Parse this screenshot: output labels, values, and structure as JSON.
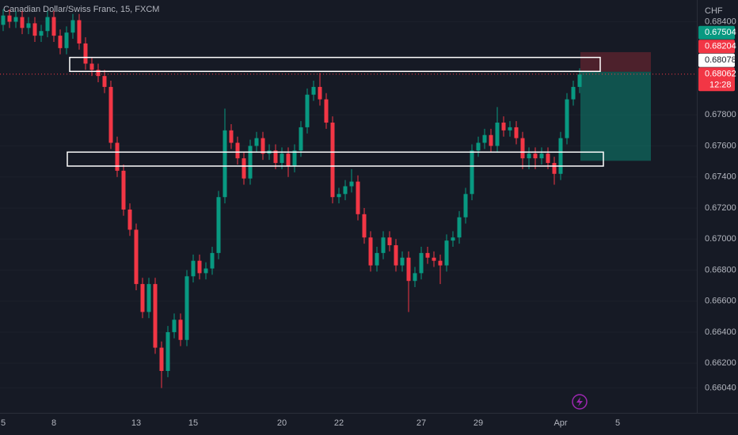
{
  "chart_data": {
    "type": "candlestick",
    "title": "Canadian Dollar/Swiss Franc, 15, FXCM",
    "currency": "CHF",
    "bull_color": "#089981",
    "bear_color": "#f23645",
    "grid": true,
    "categories": [
      "5",
      null,
      null,
      null,
      null,
      null,
      null,
      null,
      "8",
      null,
      null,
      null,
      null,
      null,
      null,
      null,
      null,
      null,
      null,
      null,
      null,
      "13",
      null,
      null,
      null,
      null,
      null,
      null,
      null,
      null,
      "15",
      null,
      null,
      null,
      null,
      null,
      null,
      null,
      null,
      null,
      null,
      null,
      null,
      null,
      "20",
      null,
      null,
      null,
      null,
      null,
      null,
      null,
      null,
      "22",
      null,
      null,
      null,
      null,
      null,
      null,
      null,
      null,
      null,
      null,
      null,
      null,
      "27",
      null,
      null,
      null,
      null,
      null,
      null,
      null,
      null,
      "29",
      null,
      null,
      null,
      null,
      null,
      null,
      null,
      null,
      null,
      null,
      null,
      null,
      "Apr",
      null,
      null,
      null,
      null,
      null,
      null,
      null,
      null,
      "5",
      null,
      null
    ],
    "open": [
      0.6838,
      0.6844,
      0.684,
      0.6843,
      0.6836,
      0.6839,
      0.6831,
      0.6834,
      0.6843,
      0.6831,
      0.6823,
      0.6833,
      0.6841,
      0.6826,
      0.6813,
      0.6809,
      0.6805,
      0.6798,
      0.6762,
      0.6744,
      0.6719,
      0.6706,
      0.6671,
      0.6653,
      0.6671,
      0.663,
      0.6615,
      0.664,
      0.6648,
      0.6635,
      0.6676,
      0.6686,
      0.6678,
      0.6681,
      0.6691,
      0.6727,
      0.677,
      0.6762,
      0.6752,
      0.6739,
      0.676,
      0.6765,
      0.6755,
      0.6757,
      0.6749,
      0.6755,
      0.6747,
      0.6757,
      0.6772,
      0.6793,
      0.6798,
      0.679,
      0.6775,
      0.6727,
      0.6729,
      0.6734,
      0.6737,
      0.6716,
      0.6701,
      0.6683,
      0.6691,
      0.6701,
      0.6696,
      0.6683,
      0.6688,
      0.6673,
      0.6678,
      0.6691,
      0.6688,
      0.6686,
      0.6683,
      0.6699,
      0.6701,
      0.6714,
      0.6729,
      0.6757,
      0.6762,
      0.6767,
      0.676,
      0.6775,
      0.677,
      0.6772,
      0.6765,
      0.6752,
      0.6755,
      0.6752,
      0.6755,
      0.6749,
      0.6742,
      0.6765,
      0.679,
      0.6798,
      null,
      null,
      null,
      null,
      null,
      null,
      null,
      null
    ],
    "high": [
      0.6848,
      0.6848,
      0.6847,
      0.6847,
      0.6843,
      0.6843,
      0.6838,
      0.6847,
      0.6847,
      0.6835,
      0.6837,
      0.6845,
      0.6845,
      0.683,
      0.6817,
      0.6813,
      0.6809,
      0.6802,
      0.6766,
      0.6748,
      0.6723,
      0.671,
      0.6675,
      0.6675,
      0.6675,
      0.6634,
      0.6644,
      0.6652,
      0.6652,
      0.668,
      0.669,
      0.669,
      0.6685,
      0.6695,
      0.6731,
      0.6784,
      0.6774,
      0.6766,
      0.6756,
      0.6764,
      0.6769,
      0.6769,
      0.6761,
      0.6761,
      0.6759,
      0.6759,
      0.6761,
      0.6776,
      0.6797,
      0.6802,
      0.6807,
      0.6794,
      0.6779,
      0.6733,
      0.6738,
      0.6745,
      0.6741,
      0.672,
      0.6705,
      0.6695,
      0.6705,
      0.6705,
      0.67,
      0.6692,
      0.6692,
      0.6682,
      0.6695,
      0.6695,
      0.6692,
      0.669,
      0.6703,
      0.6705,
      0.6718,
      0.6733,
      0.6761,
      0.6766,
      0.6771,
      0.6771,
      0.6785,
      0.6779,
      0.6776,
      0.6776,
      0.6769,
      0.6759,
      0.6759,
      0.6759,
      0.6759,
      0.6753,
      0.6769,
      0.6794,
      0.6802,
      0.681,
      null,
      null,
      null,
      null,
      null,
      null,
      null,
      null
    ],
    "low": [
      0.6834,
      0.6836,
      0.6836,
      0.6832,
      0.6832,
      0.6827,
      0.6827,
      0.683,
      0.6827,
      0.6819,
      0.6819,
      0.6829,
      0.6822,
      0.6809,
      0.6805,
      0.6801,
      0.6794,
      0.6758,
      0.674,
      0.6715,
      0.6702,
      0.6667,
      0.6649,
      0.6649,
      0.6626,
      0.6604,
      0.6611,
      0.6636,
      0.6631,
      0.6631,
      0.6672,
      0.6674,
      0.6674,
      0.6677,
      0.6687,
      0.6723,
      0.6758,
      0.6748,
      0.6735,
      0.6735,
      0.6756,
      0.6751,
      0.6751,
      0.6745,
      0.6745,
      0.674,
      0.6743,
      0.6753,
      0.6768,
      0.6789,
      0.6786,
      0.6771,
      0.6723,
      0.6723,
      0.6725,
      0.673,
      0.6712,
      0.6697,
      0.6679,
      0.6679,
      0.6687,
      0.6692,
      0.6679,
      0.6679,
      0.6653,
      0.6669,
      0.6674,
      0.6684,
      0.6682,
      0.6671,
      0.6679,
      0.6695,
      0.6697,
      0.671,
      0.6725,
      0.6753,
      0.6758,
      0.6756,
      0.6756,
      0.6766,
      0.6766,
      0.6761,
      0.6745,
      0.6745,
      0.6745,
      0.6748,
      0.6745,
      0.6735,
      0.6738,
      0.6761,
      0.6786,
      0.6794,
      null,
      null,
      null,
      null,
      null,
      null,
      null,
      null
    ],
    "close": [
      0.6844,
      0.684,
      0.6843,
      0.6836,
      0.6839,
      0.6831,
      0.6834,
      0.6843,
      0.6831,
      0.6823,
      0.6833,
      0.6841,
      0.6826,
      0.6813,
      0.6809,
      0.6805,
      0.6798,
      0.6762,
      0.6744,
      0.6719,
      0.6706,
      0.6671,
      0.6653,
      0.6671,
      0.663,
      0.6615,
      0.664,
      0.6648,
      0.6635,
      0.6676,
      0.6686,
      0.6678,
      0.6681,
      0.6691,
      0.6727,
      0.677,
      0.6762,
      0.6752,
      0.6739,
      0.676,
      0.6765,
      0.6755,
      0.6757,
      0.6749,
      0.6755,
      0.6747,
      0.6757,
      0.6772,
      0.6793,
      0.6798,
      0.679,
      0.6775,
      0.6727,
      0.6729,
      0.6734,
      0.6737,
      0.6716,
      0.6701,
      0.6683,
      0.6691,
      0.6701,
      0.6696,
      0.6683,
      0.6688,
      0.6673,
      0.6678,
      0.6691,
      0.6688,
      0.6686,
      0.6683,
      0.6699,
      0.6701,
      0.6714,
      0.6729,
      0.6757,
      0.6762,
      0.6767,
      0.676,
      0.6775,
      0.677,
      0.6772,
      0.6765,
      0.6752,
      0.6755,
      0.6752,
      0.6755,
      0.6749,
      0.6742,
      0.6765,
      0.679,
      0.6798,
      0.6806,
      null,
      null,
      null,
      null,
      null,
      null,
      null,
      null
    ],
    "ylim": [
      0.6588,
      0.6854
    ],
    "yticks": [
      {
        "value": 0.684,
        "label": "0.68400"
      },
      {
        "value": 0.678,
        "label": "0.67800"
      },
      {
        "value": 0.676,
        "label": "0.67600"
      },
      {
        "value": 0.674,
        "label": "0.67400"
      },
      {
        "value": 0.672,
        "label": "0.67200"
      },
      {
        "value": 0.67,
        "label": "0.67000"
      },
      {
        "value": 0.668,
        "label": "0.66800"
      },
      {
        "value": 0.666,
        "label": "0.66600"
      },
      {
        "value": 0.664,
        "label": "0.66400"
      },
      {
        "value": 0.662,
        "label": "0.66200"
      },
      {
        "value": 0.6604,
        "label": "0.66040"
      }
    ],
    "zones": [
      {
        "top": 0.6817,
        "bottom": 0.6808
      },
      {
        "top": 0.6756,
        "bottom": 0.6747
      }
    ],
    "position": {
      "stop": 0.68204,
      "entry": 0.68078,
      "target": 0.67504
    },
    "last_price": 0.68062,
    "countdown": "12:28"
  }
}
